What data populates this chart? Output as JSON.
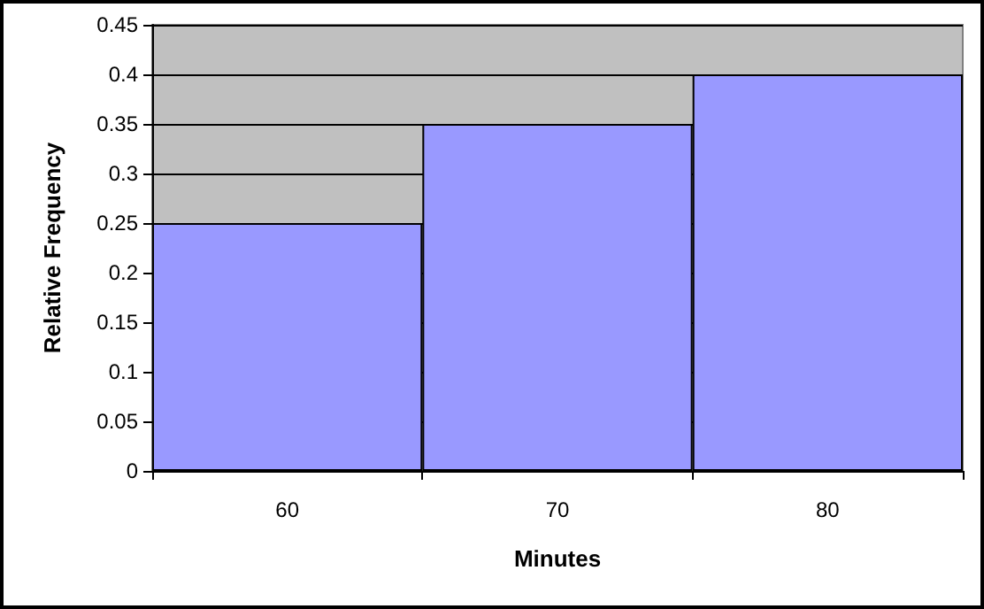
{
  "chart_data": {
    "type": "bar",
    "xlabel": "Minutes",
    "ylabel": "Relative Frequency",
    "categories": [
      "60",
      "70",
      "80"
    ],
    "values": [
      0.25,
      0.35,
      0.4
    ],
    "color": "#9999ff",
    "ylim": [
      0,
      0.45
    ],
    "yticks": [
      0,
      0.05,
      0.1,
      0.15,
      0.2,
      0.25,
      0.3,
      0.35,
      0.4,
      0.45
    ],
    "grid": "y"
  }
}
